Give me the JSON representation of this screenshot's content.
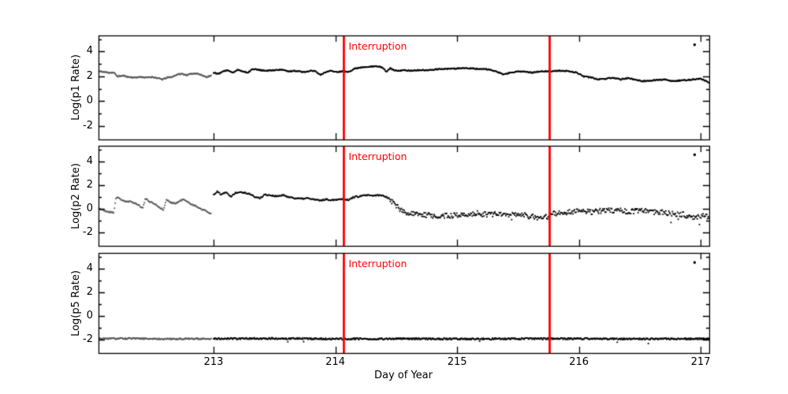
{
  "chart_data": {
    "type": "scatter",
    "title": "",
    "xlabel": "Day of Year",
    "x_range": [
      212.055,
      217.07
    ],
    "y_range": [
      -3.1,
      5.3
    ],
    "x_ticks": [
      213,
      214,
      215,
      216,
      217
    ],
    "x_tick_labels": [
      "213",
      "214",
      "215",
      "216",
      "217"
    ],
    "y_major_ticks": [
      -2,
      0,
      2,
      4
    ],
    "y_tick_labels": [
      "-2",
      "0",
      "2",
      "4"
    ],
    "y_minor_ticks": [
      -1,
      1,
      3,
      5
    ],
    "grid": false,
    "legend": "none",
    "frame_color": "#000000",
    "interruption": {
      "label": "Interruption",
      "x_values": [
        214.07,
        215.76
      ],
      "color": "#ff0000"
    },
    "panels": [
      {
        "ylabel": "Log(p1 Rate)",
        "show_interruption_label": true,
        "outlier": {
          "x": 216.95,
          "y": 4.55
        },
        "series": [
          {
            "name": "pre-day-213 (gray)",
            "color": "#585858",
            "seed": 11,
            "step": 0.005,
            "noise": 0.045,
            "anchors": [
              [
                212.06,
                2.4
              ],
              [
                212.1,
                2.35
              ],
              [
                212.14,
                2.3
              ],
              [
                212.18,
                2.3
              ],
              [
                212.21,
                2.0
              ],
              [
                212.26,
                2.05
              ],
              [
                212.3,
                1.95
              ],
              [
                212.35,
                1.9
              ],
              [
                212.4,
                1.95
              ],
              [
                212.45,
                1.9
              ],
              [
                212.5,
                1.95
              ],
              [
                212.54,
                1.85
              ],
              [
                212.58,
                1.75
              ],
              [
                212.62,
                1.9
              ],
              [
                212.66,
                1.95
              ],
              [
                212.7,
                2.15
              ],
              [
                212.74,
                2.2
              ],
              [
                212.78,
                2.1
              ],
              [
                212.82,
                2.2
              ],
              [
                212.86,
                2.25
              ],
              [
                212.9,
                2.1
              ],
              [
                212.94,
                1.95
              ],
              [
                212.98,
                2.05
              ]
            ]
          },
          {
            "name": "post-day-213 (black)",
            "color": "#000000",
            "seed": 12,
            "step": 0.005,
            "noise": 0.045,
            "anchors": [
              [
                213.0,
                2.3
              ],
              [
                213.04,
                2.2
              ],
              [
                213.08,
                2.4
              ],
              [
                213.12,
                2.5
              ],
              [
                213.16,
                2.3
              ],
              [
                213.2,
                2.55
              ],
              [
                213.24,
                2.4
              ],
              [
                213.28,
                2.3
              ],
              [
                213.32,
                2.6
              ],
              [
                213.38,
                2.5
              ],
              [
                213.44,
                2.45
              ],
              [
                213.5,
                2.5
              ],
              [
                213.56,
                2.55
              ],
              [
                213.62,
                2.4
              ],
              [
                213.68,
                2.45
              ],
              [
                213.74,
                2.35
              ],
              [
                213.8,
                2.45
              ],
              [
                213.84,
                2.4
              ],
              [
                213.88,
                2.1
              ],
              [
                213.92,
                2.35
              ],
              [
                213.96,
                2.45
              ],
              [
                214.0,
                2.35
              ],
              [
                214.07,
                2.4
              ],
              [
                214.11,
                2.35
              ],
              [
                214.15,
                2.6
              ],
              [
                214.2,
                2.7
              ],
              [
                214.26,
                2.75
              ],
              [
                214.32,
                2.8
              ],
              [
                214.38,
                2.75
              ],
              [
                214.42,
                2.4
              ],
              [
                214.45,
                2.65
              ],
              [
                214.48,
                2.5
              ],
              [
                214.52,
                2.45
              ],
              [
                214.56,
                2.5
              ],
              [
                214.62,
                2.45
              ],
              [
                214.7,
                2.5
              ],
              [
                214.78,
                2.5
              ],
              [
                214.86,
                2.6
              ],
              [
                214.94,
                2.6
              ],
              [
                215.02,
                2.65
              ],
              [
                215.1,
                2.65
              ],
              [
                215.18,
                2.6
              ],
              [
                215.26,
                2.55
              ],
              [
                215.32,
                2.4
              ],
              [
                215.38,
                2.15
              ],
              [
                215.44,
                2.3
              ],
              [
                215.5,
                2.4
              ],
              [
                215.56,
                2.35
              ],
              [
                215.62,
                2.3
              ],
              [
                215.68,
                2.4
              ],
              [
                215.76,
                2.42
              ],
              [
                215.84,
                2.45
              ],
              [
                215.92,
                2.42
              ],
              [
                215.98,
                2.3
              ],
              [
                216.04,
                2.0
              ],
              [
                216.1,
                1.9
              ],
              [
                216.16,
                1.75
              ],
              [
                216.22,
                1.8
              ],
              [
                216.28,
                1.9
              ],
              [
                216.34,
                1.75
              ],
              [
                216.4,
                1.85
              ],
              [
                216.46,
                1.75
              ],
              [
                216.52,
                1.6
              ],
              [
                216.58,
                1.65
              ],
              [
                216.64,
                1.7
              ],
              [
                216.7,
                1.75
              ],
              [
                216.76,
                1.6
              ],
              [
                216.82,
                1.65
              ],
              [
                216.88,
                1.7
              ],
              [
                216.94,
                1.75
              ],
              [
                217.0,
                1.8
              ],
              [
                217.07,
                1.5
              ]
            ]
          }
        ]
      },
      {
        "ylabel": "Log(p2 Rate)",
        "show_interruption_label": true,
        "outlier": {
          "x": 216.95,
          "y": 4.55
        },
        "series": [
          {
            "name": "pre-day-213 (gray)",
            "color": "#585858",
            "seed": 21,
            "step": 0.006,
            "noise": 0.06,
            "anchors": [
              [
                212.06,
                0.05
              ],
              [
                212.1,
                -0.15
              ],
              [
                212.14,
                -0.25
              ],
              [
                212.18,
                -0.3
              ],
              [
                212.2,
                1.0
              ],
              [
                212.24,
                0.8
              ],
              [
                212.28,
                0.6
              ],
              [
                212.33,
                0.6
              ],
              [
                212.38,
                0.35
              ],
              [
                212.42,
                0.1
              ],
              [
                212.44,
                0.85
              ],
              [
                212.48,
                0.6
              ],
              [
                212.52,
                0.4
              ],
              [
                212.56,
                0.1
              ],
              [
                212.59,
                -0.1
              ],
              [
                212.61,
                0.75
              ],
              [
                212.65,
                0.55
              ],
              [
                212.69,
                0.45
              ],
              [
                212.72,
                0.65
              ],
              [
                212.75,
                0.8
              ],
              [
                212.79,
                0.55
              ],
              [
                212.83,
                0.35
              ],
              [
                212.87,
                0.15
              ],
              [
                212.91,
                -0.05
              ],
              [
                212.94,
                -0.2
              ],
              [
                212.98,
                -0.4
              ]
            ]
          },
          {
            "name": "post-day-213 (black)",
            "color": "#000000",
            "seed": 22,
            "step": 0.006,
            "noise": 0.06,
            "noise_segments": [
              {
                "from": 212.9,
                "to": 214.45,
                "amp": 0.06
              },
              {
                "from": 214.45,
                "to": 217.2,
                "amp": 0.22
              }
            ],
            "spikes": {
              "from": 214.5,
              "chance": 0.025,
              "min": 0.2,
              "max": 0.7
            },
            "anchors": [
              [
                213.0,
                1.2
              ],
              [
                213.03,
                1.45
              ],
              [
                213.06,
                1.25
              ],
              [
                213.1,
                1.4
              ],
              [
                213.14,
                1.05
              ],
              [
                213.18,
                1.35
              ],
              [
                213.22,
                1.45
              ],
              [
                213.26,
                1.35
              ],
              [
                213.3,
                1.25
              ],
              [
                213.34,
                1.0
              ],
              [
                213.38,
                0.9
              ],
              [
                213.42,
                1.2
              ],
              [
                213.47,
                1.15
              ],
              [
                213.52,
                1.05
              ],
              [
                213.57,
                1.15
              ],
              [
                213.62,
                1.0
              ],
              [
                213.67,
                0.9
              ],
              [
                213.72,
                0.85
              ],
              [
                213.77,
                0.9
              ],
              [
                213.82,
                0.8
              ],
              [
                213.87,
                0.7
              ],
              [
                213.92,
                0.8
              ],
              [
                213.97,
                0.75
              ],
              [
                214.02,
                0.8
              ],
              [
                214.07,
                0.85
              ],
              [
                214.11,
                0.75
              ],
              [
                214.15,
                1.0
              ],
              [
                214.2,
                1.05
              ],
              [
                214.25,
                1.15
              ],
              [
                214.3,
                1.1
              ],
              [
                214.35,
                1.15
              ],
              [
                214.4,
                1.1
              ],
              [
                214.44,
                0.9
              ],
              [
                214.47,
                0.6
              ],
              [
                214.5,
                0.3
              ],
              [
                214.54,
                -0.1
              ],
              [
                214.58,
                -0.35
              ],
              [
                214.64,
                -0.45
              ],
              [
                214.72,
                -0.5
              ],
              [
                214.8,
                -0.55
              ],
              [
                214.9,
                -0.6
              ],
              [
                215.0,
                -0.5
              ],
              [
                215.08,
                -0.45
              ],
              [
                215.16,
                -0.35
              ],
              [
                215.24,
                -0.5
              ],
              [
                215.32,
                -0.4
              ],
              [
                215.4,
                -0.5
              ],
              [
                215.48,
                -0.45
              ],
              [
                215.56,
                -0.55
              ],
              [
                215.64,
                -0.7
              ],
              [
                215.7,
                -0.8
              ],
              [
                215.74,
                -0.65
              ],
              [
                215.79,
                -0.4
              ],
              [
                215.84,
                -0.3
              ],
              [
                215.92,
                -0.25
              ],
              [
                216.0,
                -0.2
              ],
              [
                216.1,
                -0.25
              ],
              [
                216.2,
                -0.15
              ],
              [
                216.3,
                -0.1
              ],
              [
                216.4,
                -0.2
              ],
              [
                216.5,
                -0.15
              ],
              [
                216.6,
                -0.25
              ],
              [
                216.7,
                -0.3
              ],
              [
                216.8,
                -0.4
              ],
              [
                216.87,
                -0.5
              ],
              [
                216.93,
                -0.8
              ],
              [
                216.98,
                -0.6
              ],
              [
                217.07,
                -0.6
              ]
            ]
          }
        ]
      },
      {
        "ylabel": "Log(p5 Rate)",
        "show_interruption_label": true,
        "outlier": {
          "x": 216.95,
          "y": 4.5
        },
        "series": [
          {
            "name": "pre-day-213 (gray)",
            "color": "#585858",
            "seed": 31,
            "step": 0.005,
            "noise": 0.06,
            "anchors": [
              [
                212.06,
                -1.9
              ],
              [
                212.3,
                -1.88
              ],
              [
                212.6,
                -1.92
              ],
              [
                212.8,
                -1.9
              ],
              [
                212.98,
                -1.9
              ]
            ]
          },
          {
            "name": "post-day-213 (black)",
            "color": "#000000",
            "seed": 32,
            "step": 0.005,
            "noise": 0.07,
            "spikes": {
              "from": 213.3,
              "chance": 0.012,
              "min": 0.1,
              "max": 0.45
            },
            "anchors": [
              [
                213.0,
                -1.9
              ],
              [
                213.5,
                -1.88
              ],
              [
                214.0,
                -1.92
              ],
              [
                214.5,
                -1.9
              ],
              [
                215.0,
                -1.92
              ],
              [
                215.5,
                -1.9
              ],
              [
                216.0,
                -1.9
              ],
              [
                216.5,
                -1.92
              ],
              [
                217.07,
                -1.9
              ]
            ]
          }
        ]
      }
    ]
  }
}
